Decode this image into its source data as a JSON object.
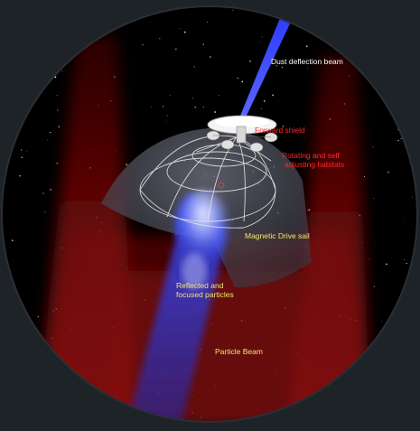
{
  "diagram": {
    "labels": {
      "dust_beam": "Dust deflection beam",
      "forward_shield": "Forward shield",
      "habitats_line1": "Rotating and self",
      "habitats_line2": "adjusting habitats",
      "drive_sail": "Magnetic Drive sail",
      "reflected_line1": "Reflected and",
      "reflected_line2": "focused particles",
      "particle_beam": "Particle Beam"
    },
    "colors": {
      "frame_background": "#1e2328",
      "space": "#000000",
      "label_white": "#ffffff",
      "label_red": "#ff2a2a",
      "label_yellow": "#f2e86a",
      "dust_beam": "#2e3cff",
      "particle_beam_red": "#8a0a0a",
      "reflected_particles": "#3a4cff",
      "sail_wire": "#e8e8e8"
    }
  }
}
